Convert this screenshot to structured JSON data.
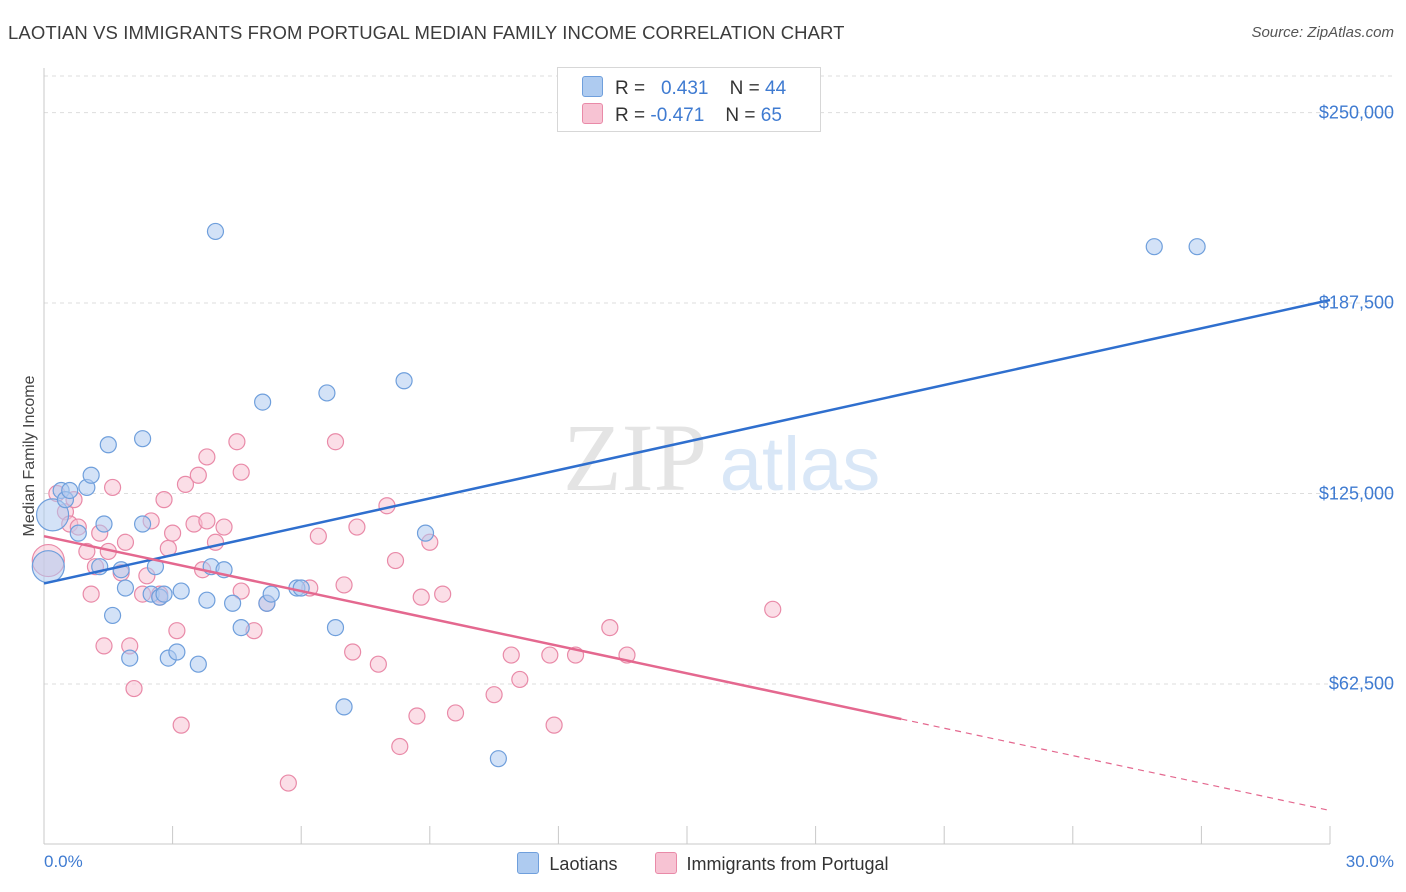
{
  "title": "LAOTIAN VS IMMIGRANTS FROM PORTUGAL MEDIAN FAMILY INCOME CORRELATION CHART",
  "source": "Source: ZipAtlas.com",
  "watermark": {
    "zip": "ZIP",
    "atlas": "atlas"
  },
  "stats": [
    {
      "r_label": "R =",
      "r_value": "0.431",
      "n_label": "N =",
      "n_value": "44"
    },
    {
      "r_label": "R =",
      "r_value": "-0.471",
      "n_label": "N =",
      "n_value": "65"
    }
  ],
  "colors": {
    "laotians_fill": "#aecbf0",
    "laotians_stroke": "#6f9fdc",
    "laotians_line": "#2f6fce",
    "portugal_fill": "#f7c3d3",
    "portugal_stroke": "#e98aa8",
    "portugal_line": "#e4688f",
    "tick_text": "#3f7bd1",
    "grid": "#dddddd"
  },
  "chart_data": {
    "type": "scatter",
    "title": "LAOTIAN VS IMMIGRANTS FROM PORTUGAL MEDIAN FAMILY INCOME CORRELATION CHART",
    "xlabel": "",
    "ylabel": "Median Family Income",
    "xlim": [
      0,
      30
    ],
    "ylim": [
      10000,
      262000
    ],
    "x_tick_labels": [
      "0.0%",
      "30.0%"
    ],
    "y_ticks": [
      62500,
      125000,
      187500,
      250000
    ],
    "y_tick_labels": [
      "$62,500",
      "$125,000",
      "$187,500",
      "$250,000"
    ],
    "grid": true,
    "legend_position": "bottom-center",
    "series": [
      {
        "name": "Laotians",
        "points": [
          [
            0.1,
            101000
          ],
          [
            0.2,
            118000
          ],
          [
            0.4,
            126000
          ],
          [
            0.5,
            123000
          ],
          [
            0.6,
            126000
          ],
          [
            0.8,
            112000
          ],
          [
            1.0,
            127000
          ],
          [
            1.1,
            131000
          ],
          [
            1.3,
            101000
          ],
          [
            1.4,
            115000
          ],
          [
            1.5,
            141000
          ],
          [
            1.6,
            85000
          ],
          [
            1.8,
            100000
          ],
          [
            1.9,
            94000
          ],
          [
            2.0,
            71000
          ],
          [
            2.3,
            115000
          ],
          [
            2.3,
            143000
          ],
          [
            2.5,
            92000
          ],
          [
            2.6,
            101000
          ],
          [
            2.7,
            91000
          ],
          [
            2.8,
            92000
          ],
          [
            2.9,
            71000
          ],
          [
            3.1,
            73000
          ],
          [
            3.2,
            93000
          ],
          [
            3.6,
            69000
          ],
          [
            3.8,
            90000
          ],
          [
            3.9,
            101000
          ],
          [
            4.0,
            211000
          ],
          [
            4.2,
            100000
          ],
          [
            4.4,
            89000
          ],
          [
            4.6,
            81000
          ],
          [
            5.1,
            155000
          ],
          [
            5.2,
            89000
          ],
          [
            5.3,
            92000
          ],
          [
            5.9,
            94000
          ],
          [
            6.6,
            158000
          ],
          [
            6.8,
            81000
          ],
          [
            7.0,
            55000
          ],
          [
            8.4,
            162000
          ],
          [
            8.9,
            112000
          ],
          [
            10.6,
            38000
          ],
          [
            25.9,
            206000
          ],
          [
            26.9,
            206000
          ],
          [
            6.0,
            94000
          ]
        ],
        "trend": {
          "x": [
            0,
            30
          ],
          "y": [
            95500,
            188500
          ]
        }
      },
      {
        "name": "Immigrants from Portugal",
        "points": [
          [
            0.1,
            103000
          ],
          [
            0.3,
            125000
          ],
          [
            0.5,
            119000
          ],
          [
            0.6,
            115000
          ],
          [
            0.7,
            123000
          ],
          [
            0.8,
            114000
          ],
          [
            1.0,
            106000
          ],
          [
            1.1,
            92000
          ],
          [
            1.2,
            101000
          ],
          [
            1.3,
            112000
          ],
          [
            1.4,
            75000
          ],
          [
            1.5,
            106000
          ],
          [
            1.6,
            127000
          ],
          [
            1.8,
            99000
          ],
          [
            1.9,
            109000
          ],
          [
            2.0,
            75000
          ],
          [
            2.1,
            61000
          ],
          [
            2.3,
            92000
          ],
          [
            2.4,
            98000
          ],
          [
            2.5,
            116000
          ],
          [
            2.7,
            92000
          ],
          [
            2.7,
            91000
          ],
          [
            2.8,
            123000
          ],
          [
            2.9,
            107000
          ],
          [
            3.0,
            112000
          ],
          [
            3.1,
            80000
          ],
          [
            3.2,
            49000
          ],
          [
            3.3,
            128000
          ],
          [
            3.5,
            115000
          ],
          [
            3.6,
            131000
          ],
          [
            3.7,
            100000
          ],
          [
            3.8,
            137000
          ],
          [
            3.8,
            116000
          ],
          [
            4.0,
            109000
          ],
          [
            4.2,
            114000
          ],
          [
            4.5,
            142000
          ],
          [
            4.6,
            93000
          ],
          [
            4.6,
            132000
          ],
          [
            4.9,
            80000
          ],
          [
            5.2,
            89000
          ],
          [
            5.7,
            30000
          ],
          [
            6.2,
            94000
          ],
          [
            6.4,
            111000
          ],
          [
            6.8,
            142000
          ],
          [
            7.0,
            95000
          ],
          [
            7.2,
            73000
          ],
          [
            7.3,
            114000
          ],
          [
            7.8,
            69000
          ],
          [
            8.0,
            121000
          ],
          [
            8.2,
            103000
          ],
          [
            8.3,
            42000
          ],
          [
            8.7,
            52000
          ],
          [
            8.8,
            91000
          ],
          [
            9.0,
            109000
          ],
          [
            9.3,
            92000
          ],
          [
            9.6,
            53000
          ],
          [
            10.5,
            59000
          ],
          [
            10.9,
            72000
          ],
          [
            11.1,
            64000
          ],
          [
            11.8,
            72000
          ],
          [
            11.9,
            49000
          ],
          [
            12.4,
            72000
          ],
          [
            13.2,
            81000
          ],
          [
            13.6,
            72000
          ],
          [
            17.0,
            87000
          ]
        ],
        "trend": {
          "x": [
            0,
            20
          ],
          "y": [
            111000,
            51000
          ]
        },
        "trend_dashed": {
          "x": [
            20,
            30
          ],
          "y": [
            51000,
            21000
          ]
        }
      }
    ]
  }
}
